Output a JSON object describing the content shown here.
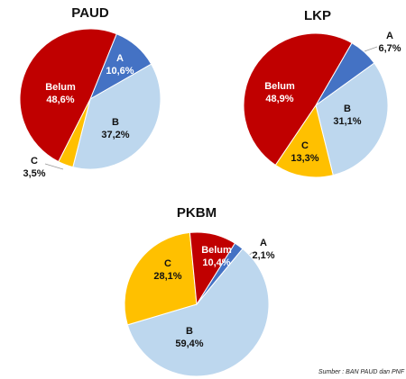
{
  "chart_data": [
    {
      "type": "pie",
      "title": "PAUD",
      "categories": [
        "A",
        "B",
        "C",
        "Belum"
      ],
      "values": [
        10.6,
        37.2,
        3.5,
        48.6
      ],
      "value_labels": [
        "10,6%",
        "37,2%",
        "3,5%",
        "48,6%"
      ],
      "colors": [
        "#4472c4",
        "#bdd7ee",
        "#ffc000",
        "#c00000"
      ]
    },
    {
      "type": "pie",
      "title": "LKP",
      "categories": [
        "A",
        "B",
        "C",
        "Belum"
      ],
      "values": [
        6.7,
        31.1,
        13.3,
        48.9
      ],
      "value_labels": [
        "6,7%",
        "31,1%",
        "13,3%",
        "48,9%"
      ],
      "colors": [
        "#4472c4",
        "#bdd7ee",
        "#ffc000",
        "#c00000"
      ]
    },
    {
      "type": "pie",
      "title": "PKBM",
      "categories": [
        "A",
        "B",
        "C",
        "Belum"
      ],
      "values": [
        2.1,
        59.4,
        28.1,
        10.4
      ],
      "value_labels": [
        "2,1%",
        "59,4%",
        "28,1%",
        "10,4%"
      ],
      "colors": [
        "#4472c4",
        "#bdd7ee",
        "#ffc000",
        "#c00000"
      ]
    }
  ],
  "note": "Sumber : BAN PAUD dan PNF"
}
